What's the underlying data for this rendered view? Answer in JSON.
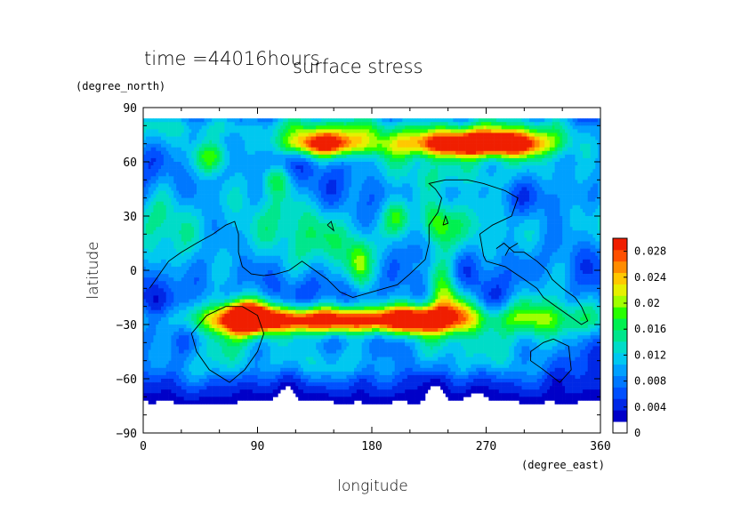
{
  "chart_data": {
    "type": "heatmap",
    "title": "surface stress",
    "time_label": "time =44016hours",
    "xlabel": "longitude",
    "ylabel": "latitude",
    "x_units": "(degree_east)",
    "y_units": "(degree_north)",
    "xlim": [
      0,
      360
    ],
    "ylim": [
      -90,
      90
    ],
    "x_ticks": [
      {
        "value": 0,
        "label": "0"
      },
      {
        "value": 90,
        "label": "90"
      },
      {
        "value": 180,
        "label": "180"
      },
      {
        "value": 270,
        "label": "270"
      },
      {
        "value": 360,
        "label": "360"
      }
    ],
    "y_ticks": [
      {
        "value": 90,
        "label": "90"
      },
      {
        "value": 60,
        "label": "60"
      },
      {
        "value": 30,
        "label": "30"
      },
      {
        "value": 0,
        "label": "0"
      },
      {
        "value": -30,
        "label": "−30"
      },
      {
        "value": -60,
        "label": "−60"
      },
      {
        "value": -90,
        "label": "−90"
      }
    ],
    "colorbar": {
      "min": 0,
      "max": 0.03,
      "tick_values": [
        0,
        0.004,
        0.008,
        0.012,
        0.016,
        0.02,
        0.024,
        0.028
      ],
      "tick_labels": [
        "0",
        "0.004",
        "0.008",
        "0.012",
        "0.016",
        "0.02",
        "0.024",
        "0.028"
      ],
      "colors": [
        "#ffffff",
        "#0000c8",
        "#0028e6",
        "#0050ff",
        "#0078ff",
        "#00a0ff",
        "#00c8f0",
        "#00dcc8",
        "#00e68c",
        "#00f050",
        "#28ff00",
        "#a0ff00",
        "#e6f000",
        "#ffc800",
        "#ff8c00",
        "#ff5000",
        "#f01e00"
      ]
    },
    "features": [
      {
        "lon": 180,
        "lat": 80,
        "sx": 180,
        "sy": 5,
        "amp": 0.008
      },
      {
        "lon": 220,
        "lat": 70,
        "sx": 110,
        "sy": 6,
        "amp": 0.008
      },
      {
        "lon": 140,
        "lat": 70,
        "sx": 22,
        "sy": 5,
        "amp": 0.02
      },
      {
        "lon": 240,
        "lat": 70,
        "sx": 28,
        "sy": 5,
        "amp": 0.018
      },
      {
        "lon": 285,
        "lat": 70,
        "sx": 26,
        "sy": 5,
        "amp": 0.02
      },
      {
        "lon": 255,
        "lat": 55,
        "sx": 60,
        "sy": 8,
        "amp": 0.008
      },
      {
        "lon": 105,
        "lat": 50,
        "sx": 8,
        "sy": 6,
        "amp": 0.008
      },
      {
        "lon": 55,
        "lat": 62,
        "sx": 10,
        "sy": 6,
        "amp": 0.01
      },
      {
        "lon": 70,
        "lat": 25,
        "sx": 55,
        "sy": 22,
        "amp": 0.006
      },
      {
        "lon": 20,
        "lat": 30,
        "sx": 16,
        "sy": 14,
        "amp": 0.006
      },
      {
        "lon": 150,
        "lat": 15,
        "sx": 50,
        "sy": 18,
        "amp": 0.007
      },
      {
        "lon": 200,
        "lat": 30,
        "sx": 8,
        "sy": 8,
        "amp": 0.012
      },
      {
        "lon": 230,
        "lat": 25,
        "sx": 8,
        "sy": 8,
        "amp": 0.01
      },
      {
        "lon": 170,
        "lat": 5,
        "sx": 6,
        "sy": 10,
        "amp": 0.008
      },
      {
        "lon": 260,
        "lat": 25,
        "sx": 25,
        "sy": 15,
        "amp": 0.007
      },
      {
        "lon": 330,
        "lat": 25,
        "sx": 25,
        "sy": 12,
        "amp": 0.006
      },
      {
        "lon": 180,
        "lat": -26,
        "sx": 120,
        "sy": 6,
        "amp": 0.009
      },
      {
        "lon": 150,
        "lat": -28,
        "sx": 60,
        "sy": 5,
        "amp": 0.02
      },
      {
        "lon": 80,
        "lat": -26,
        "sx": 14,
        "sy": 7,
        "amp": 0.022
      },
      {
        "lon": 215,
        "lat": -28,
        "sx": 14,
        "sy": 6,
        "amp": 0.012
      },
      {
        "lon": 235,
        "lat": -10,
        "sx": 8,
        "sy": 16,
        "amp": 0.012
      },
      {
        "lon": 250,
        "lat": -20,
        "sx": 10,
        "sy": 10,
        "amp": 0.009
      },
      {
        "lon": 60,
        "lat": -45,
        "sx": 20,
        "sy": 14,
        "amp": 0.008
      },
      {
        "lon": 140,
        "lat": -50,
        "sx": 70,
        "sy": 10,
        "amp": 0.005
      },
      {
        "lon": 270,
        "lat": -45,
        "sx": 60,
        "sy": 10,
        "amp": 0.005
      },
      {
        "lon": 310,
        "lat": -20,
        "sx": 20,
        "sy": 12,
        "amp": 0.007
      },
      {
        "lon": 320,
        "lat": -30,
        "sx": 30,
        "sy": 8,
        "amp": 0.006
      }
    ],
    "coastlines": [
      [
        [
          5,
          -10
        ],
        [
          10,
          -5
        ],
        [
          15,
          0
        ],
        [
          20,
          5
        ],
        [
          30,
          10
        ],
        [
          42,
          15
        ],
        [
          55,
          20
        ],
        [
          65,
          25
        ],
        [
          72,
          27
        ],
        [
          75,
          20
        ],
        [
          75,
          10
        ],
        [
          78,
          2
        ],
        [
          85,
          -2
        ],
        [
          95,
          -3
        ],
        [
          105,
          -2
        ],
        [
          115,
          0
        ],
        [
          125,
          5
        ],
        [
          135,
          0
        ],
        [
          145,
          -5
        ],
        [
          155,
          -12
        ],
        [
          165,
          -15
        ],
        [
          180,
          -12
        ],
        [
          190,
          -10
        ],
        [
          200,
          -8
        ],
        [
          210,
          -2
        ],
        [
          222,
          6
        ],
        [
          225,
          15
        ],
        [
          225,
          25
        ],
        [
          232,
          32
        ],
        [
          235,
          40
        ],
        [
          230,
          45
        ],
        [
          225,
          48
        ],
        [
          238,
          50
        ],
        [
          255,
          50
        ],
        [
          268,
          48
        ],
        [
          285,
          44
        ],
        [
          295,
          40
        ],
        [
          290,
          30
        ],
        [
          275,
          25
        ],
        [
          265,
          20
        ],
        [
          268,
          8
        ],
        [
          270,
          5
        ],
        [
          285,
          2
        ],
        [
          300,
          -5
        ],
        [
          310,
          -10
        ],
        [
          315,
          -15
        ],
        [
          325,
          -20
        ],
        [
          335,
          -25
        ],
        [
          345,
          -30
        ],
        [
          350,
          -28
        ],
        [
          345,
          -20
        ],
        [
          340,
          -15
        ],
        [
          330,
          -10
        ],
        [
          322,
          -5
        ],
        [
          318,
          0
        ],
        [
          310,
          5
        ],
        [
          300,
          10
        ],
        [
          292,
          10
        ],
        [
          284,
          15
        ],
        [
          278,
          12
        ]
      ],
      [
        [
          65,
          -20
        ],
        [
          78,
          -20
        ],
        [
          90,
          -25
        ],
        [
          95,
          -35
        ],
        [
          90,
          -45
        ],
        [
          80,
          -55
        ],
        [
          68,
          -62
        ],
        [
          52,
          -55
        ],
        [
          42,
          -45
        ],
        [
          38,
          -35
        ],
        [
          50,
          -25
        ],
        [
          65,
          -20
        ]
      ],
      [
        [
          305,
          -45
        ],
        [
          315,
          -40
        ],
        [
          323,
          -38
        ],
        [
          335,
          -42
        ],
        [
          337,
          -55
        ],
        [
          328,
          -62
        ],
        [
          315,
          -55
        ],
        [
          305,
          -50
        ],
        [
          305,
          -45
        ]
      ],
      [
        [
          285,
          8
        ],
        [
          288,
          12
        ],
        [
          295,
          15
        ]
      ],
      [
        [
          145,
          25
        ],
        [
          148,
          27
        ],
        [
          150,
          22
        ],
        [
          145,
          25
        ]
      ],
      [
        [
          236,
          25
        ],
        [
          238,
          30
        ],
        [
          240,
          26
        ],
        [
          236,
          25
        ]
      ]
    ]
  }
}
